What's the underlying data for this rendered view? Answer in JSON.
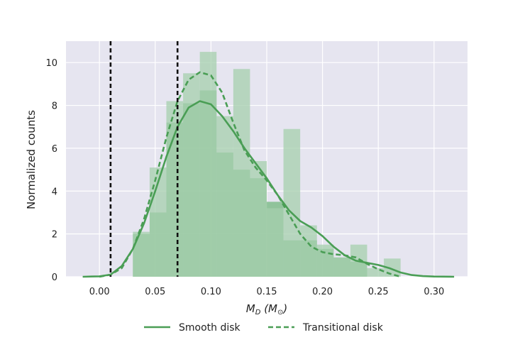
{
  "chart_data": {
    "type": "histogram",
    "xlabel": {
      "main": "M",
      "sub": "D",
      "unit_open": " (M",
      "unit_sym": "⊙",
      "unit_close": ")"
    },
    "ylabel": "Normalized counts",
    "xlim": [
      -0.03,
      0.33
    ],
    "ylim": [
      0,
      11
    ],
    "x_ticks": [
      0.0,
      0.05,
      0.1,
      0.15,
      0.2,
      0.25,
      0.3
    ],
    "x_tick_labels": [
      "0.00",
      "0.05",
      "0.10",
      "0.15",
      "0.20",
      "0.25",
      "0.30"
    ],
    "y_ticks": [
      0,
      2,
      4,
      6,
      8,
      10
    ],
    "y_tick_labels": [
      "0",
      "2",
      "4",
      "6",
      "8",
      "10"
    ],
    "grid": true,
    "legend_position": "bottom-center",
    "vlines": [
      0.01,
      0.07
    ],
    "series": [
      {
        "name": "Smooth disk",
        "color": "#4a9e55",
        "fill_color": "#6fb57a",
        "hist_alpha": 0.72,
        "line_style": "solid",
        "bins": [
          [
            0.03,
            0.045,
            2.0
          ],
          [
            0.045,
            0.06,
            3.0
          ],
          [
            0.06,
            0.075,
            7.2
          ],
          [
            0.075,
            0.09,
            8.1
          ],
          [
            0.09,
            0.105,
            8.7
          ],
          [
            0.105,
            0.12,
            5.8
          ],
          [
            0.12,
            0.135,
            5.0
          ],
          [
            0.135,
            0.15,
            4.6
          ],
          [
            0.15,
            0.165,
            3.5
          ],
          [
            0.165,
            0.18,
            1.7
          ],
          [
            0.18,
            0.195,
            1.7
          ],
          [
            0.195,
            0.21,
            1.3
          ],
          [
            0.21,
            0.225,
            0.9
          ],
          [
            0.225,
            0.24,
            0.7
          ]
        ],
        "kde": [
          [
            -0.015,
            0.0
          ],
          [
            0.0,
            0.02
          ],
          [
            0.01,
            0.1
          ],
          [
            0.02,
            0.5
          ],
          [
            0.03,
            1.3
          ],
          [
            0.04,
            2.5
          ],
          [
            0.05,
            4.0
          ],
          [
            0.06,
            5.6
          ],
          [
            0.07,
            7.0
          ],
          [
            0.08,
            7.9
          ],
          [
            0.09,
            8.2
          ],
          [
            0.1,
            8.05
          ],
          [
            0.11,
            7.5
          ],
          [
            0.12,
            6.8
          ],
          [
            0.13,
            6.0
          ],
          [
            0.14,
            5.3
          ],
          [
            0.15,
            4.6
          ],
          [
            0.16,
            3.8
          ],
          [
            0.17,
            3.1
          ],
          [
            0.18,
            2.6
          ],
          [
            0.19,
            2.3
          ],
          [
            0.2,
            1.9
          ],
          [
            0.21,
            1.4
          ],
          [
            0.22,
            1.0
          ],
          [
            0.23,
            0.75
          ],
          [
            0.24,
            0.65
          ],
          [
            0.25,
            0.55
          ],
          [
            0.26,
            0.4
          ],
          [
            0.27,
            0.2
          ],
          [
            0.28,
            0.08
          ],
          [
            0.29,
            0.03
          ],
          [
            0.3,
            0.01
          ],
          [
            0.318,
            0.0
          ]
        ]
      },
      {
        "name": "Transitional disk",
        "color": "#4a9e55",
        "fill_color": "#a6cfad",
        "hist_alpha": 0.75,
        "line_style": "dashed",
        "bins": [
          [
            0.03,
            0.045,
            2.1
          ],
          [
            0.045,
            0.06,
            5.1
          ],
          [
            0.06,
            0.075,
            8.2
          ],
          [
            0.075,
            0.09,
            9.5
          ],
          [
            0.09,
            0.105,
            10.5
          ],
          [
            0.105,
            0.12,
            7.5
          ],
          [
            0.12,
            0.135,
            9.7
          ],
          [
            0.135,
            0.15,
            5.4
          ],
          [
            0.15,
            0.165,
            3.2
          ],
          [
            0.165,
            0.18,
            6.9
          ],
          [
            0.18,
            0.195,
            2.4
          ],
          [
            0.195,
            0.21,
            1.5
          ],
          [
            0.21,
            0.225,
            0.9
          ],
          [
            0.225,
            0.24,
            1.5
          ],
          [
            0.24,
            0.255,
            0.4
          ],
          [
            0.255,
            0.27,
            0.85
          ]
        ],
        "kde": [
          [
            0.0,
            0.0
          ],
          [
            0.01,
            0.1
          ],
          [
            0.02,
            0.4
          ],
          [
            0.03,
            1.3
          ],
          [
            0.04,
            2.7
          ],
          [
            0.05,
            4.5
          ],
          [
            0.06,
            6.5
          ],
          [
            0.07,
            8.2
          ],
          [
            0.08,
            9.2
          ],
          [
            0.09,
            9.55
          ],
          [
            0.1,
            9.4
          ],
          [
            0.11,
            8.6
          ],
          [
            0.12,
            7.2
          ],
          [
            0.13,
            5.9
          ],
          [
            0.14,
            5.1
          ],
          [
            0.15,
            4.5
          ],
          [
            0.16,
            3.8
          ],
          [
            0.17,
            2.9
          ],
          [
            0.18,
            2.0
          ],
          [
            0.19,
            1.4
          ],
          [
            0.2,
            1.15
          ],
          [
            0.21,
            1.05
          ],
          [
            0.22,
            1.0
          ],
          [
            0.23,
            0.9
          ],
          [
            0.24,
            0.6
          ],
          [
            0.25,
            0.35
          ],
          [
            0.26,
            0.15
          ],
          [
            0.27,
            0.0
          ]
        ]
      }
    ]
  }
}
